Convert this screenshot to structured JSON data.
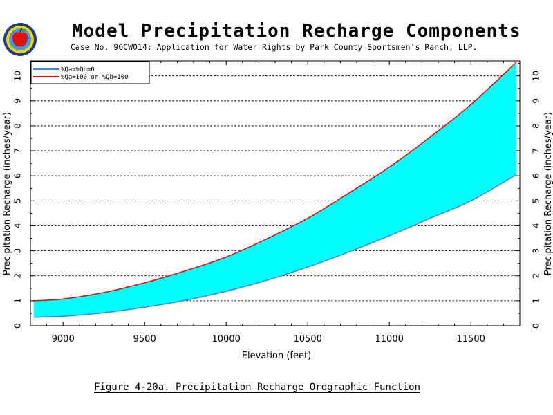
{
  "header": {
    "title": "Model Precipitation Recharge Components",
    "subtitle": "Case No. 96CW014: Application for Water Rights by Park County Sportsmen's Ranch, LLP."
  },
  "caption": "Figure 4-20a.  Precipitation Recharge Orographic Function",
  "chart_data": {
    "type": "area",
    "xlabel": "Elevation (feet)",
    "ylabel": "Precipitation Recharge (inches/year)",
    "xlim": [
      8800,
      11800
    ],
    "ylim": [
      0,
      10.6
    ],
    "x_ticks": [
      "9000",
      "9500",
      "10000",
      "10500",
      "11000",
      "11500"
    ],
    "y_ticks": [
      "0",
      "1",
      "2",
      "3",
      "4",
      "5",
      "6",
      "7",
      "8",
      "9",
      "10"
    ],
    "grid": "horizontal dashed",
    "legend_position": "top-left",
    "fill_color": "#00ffff",
    "series": [
      {
        "name": "%Qa=%Qb=0",
        "color": "#1e90ff",
        "x": [
          8820,
          9000,
          9250,
          9500,
          9750,
          10000,
          10250,
          10500,
          10750,
          11000,
          11250,
          11500,
          11780
        ],
        "values": [
          0.34,
          0.38,
          0.52,
          0.74,
          1.02,
          1.38,
          1.82,
          2.35,
          2.95,
          3.6,
          4.3,
          5.0,
          6.05
        ]
      },
      {
        "name": "%Qa=100 or %Qb=100",
        "color": "#ff0000",
        "x": [
          8820,
          9000,
          9250,
          9500,
          9750,
          10000,
          10250,
          10500,
          10750,
          11000,
          11250,
          11500,
          11780
        ],
        "values": [
          1.0,
          1.07,
          1.33,
          1.72,
          2.2,
          2.75,
          3.48,
          4.3,
          5.3,
          6.35,
          7.55,
          8.85,
          10.55
        ]
      }
    ]
  },
  "icons": {
    "logo": "apple-seal-icon"
  }
}
